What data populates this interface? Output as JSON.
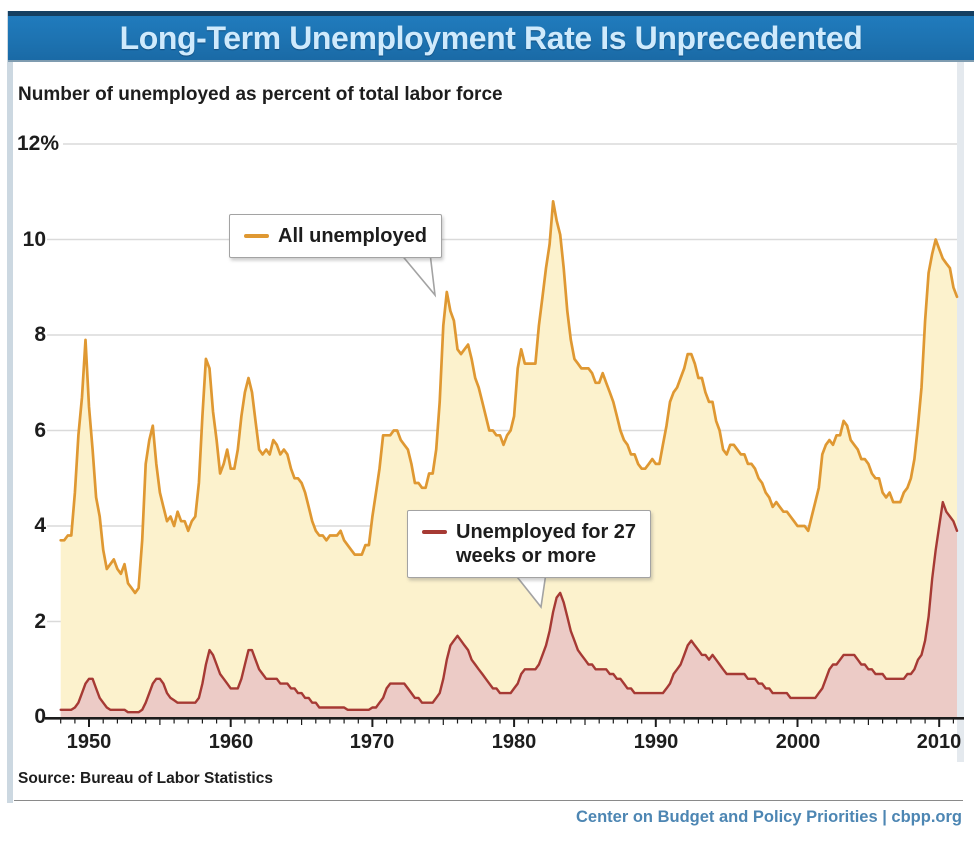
{
  "page": {
    "source": "Source: Bureau of Labor Statistics",
    "footer": "Center on Budget and Policy Priorities | cbpp.org"
  },
  "colors": {
    "banner_bg": "#1d72b0",
    "banner_border_top": "#153f61",
    "banner_text": "#cfeafc",
    "grid": "#dadada",
    "axis": "#1c1c1c",
    "footer_text": "#4d86b3",
    "callout_border": "#a3a3a3"
  },
  "chart_data": {
    "type": "area",
    "title": "Long-Term Unemployment Rate Is Unprecedented",
    "subtitle": "Number of unemployed as percent of total labor force",
    "xlabel": "",
    "ylabel": "Percent of total labor force",
    "x_start": 1948,
    "x_step": 0.25,
    "x_end": 2011.25,
    "ylim": [
      0,
      12
    ],
    "x_ticks": [
      1950,
      1960,
      1970,
      1980,
      1990,
      2000,
      2010
    ],
    "y_ticks": [
      {
        "label": "12%",
        "value": 12
      },
      {
        "label": "10",
        "value": 10
      },
      {
        "label": "8",
        "value": 8
      },
      {
        "label": "6",
        "value": 6
      },
      {
        "label": "4",
        "value": 4
      },
      {
        "label": "2",
        "value": 2
      },
      {
        "label": "0",
        "value": 0
      }
    ],
    "y_gridlines": [
      2,
      4,
      6,
      8,
      10,
      12
    ],
    "legend_position": "inline-callouts",
    "series": [
      {
        "name": "All unemployed",
        "line_color": "#df9832",
        "fill_color": "#fcf2cd",
        "values": [
          3.7,
          3.7,
          3.8,
          3.8,
          4.7,
          5.9,
          6.7,
          7.9,
          6.5,
          5.6,
          4.6,
          4.2,
          3.5,
          3.1,
          3.2,
          3.3,
          3.1,
          3.0,
          3.2,
          2.8,
          2.7,
          2.6,
          2.7,
          3.7,
          5.3,
          5.8,
          6.1,
          5.3,
          4.7,
          4.4,
          4.1,
          4.2,
          4.0,
          4.3,
          4.1,
          4.1,
          3.9,
          4.1,
          4.2,
          4.9,
          6.3,
          7.5,
          7.3,
          6.4,
          5.8,
          5.1,
          5.3,
          5.6,
          5.2,
          5.2,
          5.6,
          6.3,
          6.8,
          7.1,
          6.8,
          6.2,
          5.6,
          5.5,
          5.6,
          5.5,
          5.8,
          5.7,
          5.5,
          5.6,
          5.5,
          5.2,
          5.0,
          5.0,
          4.9,
          4.7,
          4.4,
          4.1,
          3.9,
          3.8,
          3.8,
          3.7,
          3.8,
          3.8,
          3.8,
          3.9,
          3.7,
          3.6,
          3.5,
          3.4,
          3.4,
          3.4,
          3.6,
          3.6,
          4.2,
          4.7,
          5.2,
          5.9,
          5.9,
          5.9,
          6.0,
          6.0,
          5.8,
          5.7,
          5.6,
          5.3,
          4.9,
          4.9,
          4.8,
          4.8,
          5.1,
          5.1,
          5.6,
          6.6,
          8.2,
          8.9,
          8.5,
          8.3,
          7.7,
          7.6,
          7.7,
          7.8,
          7.5,
          7.1,
          6.9,
          6.6,
          6.3,
          6.0,
          6.0,
          5.9,
          5.9,
          5.7,
          5.9,
          6.0,
          6.3,
          7.3,
          7.7,
          7.4,
          7.4,
          7.4,
          7.4,
          8.2,
          8.8,
          9.4,
          9.9,
          10.8,
          10.4,
          10.1,
          9.4,
          8.5,
          7.9,
          7.5,
          7.4,
          7.3,
          7.3,
          7.3,
          7.2,
          7.0,
          7.0,
          7.2,
          7.0,
          6.8,
          6.6,
          6.3,
          6.0,
          5.8,
          5.7,
          5.5,
          5.5,
          5.3,
          5.2,
          5.2,
          5.3,
          5.4,
          5.3,
          5.3,
          5.7,
          6.1,
          6.6,
          6.8,
          6.9,
          7.1,
          7.3,
          7.6,
          7.6,
          7.4,
          7.1,
          7.1,
          6.8,
          6.6,
          6.6,
          6.2,
          6.0,
          5.6,
          5.5,
          5.7,
          5.7,
          5.6,
          5.5,
          5.5,
          5.3,
          5.3,
          5.2,
          5.0,
          4.9,
          4.7,
          4.6,
          4.4,
          4.5,
          4.4,
          4.3,
          4.3,
          4.2,
          4.1,
          4.0,
          4.0,
          4.0,
          3.9,
          4.2,
          4.5,
          4.8,
          5.5,
          5.7,
          5.8,
          5.7,
          5.9,
          5.9,
          6.2,
          6.1,
          5.8,
          5.7,
          5.6,
          5.4,
          5.4,
          5.3,
          5.1,
          5.0,
          5.0,
          4.7,
          4.6,
          4.7,
          4.5,
          4.5,
          4.5,
          4.7,
          4.8,
          5.0,
          5.4,
          6.1,
          6.9,
          8.3,
          9.3,
          9.7,
          10.0,
          9.8,
          9.6,
          9.5,
          9.4,
          9.0,
          8.8
        ]
      },
      {
        "name": "Unemployed for 27 weeks or more",
        "line_color": "#a63a34",
        "fill_color": "#eccbc6",
        "values": [
          0.15,
          0.15,
          0.15,
          0.15,
          0.2,
          0.3,
          0.5,
          0.7,
          0.8,
          0.8,
          0.6,
          0.4,
          0.3,
          0.2,
          0.15,
          0.15,
          0.15,
          0.15,
          0.15,
          0.1,
          0.1,
          0.1,
          0.1,
          0.15,
          0.3,
          0.5,
          0.7,
          0.8,
          0.8,
          0.7,
          0.5,
          0.4,
          0.35,
          0.3,
          0.3,
          0.3,
          0.3,
          0.3,
          0.3,
          0.4,
          0.7,
          1.1,
          1.4,
          1.3,
          1.1,
          0.9,
          0.8,
          0.7,
          0.6,
          0.6,
          0.6,
          0.8,
          1.1,
          1.4,
          1.4,
          1.2,
          1.0,
          0.9,
          0.8,
          0.8,
          0.8,
          0.8,
          0.7,
          0.7,
          0.7,
          0.6,
          0.6,
          0.5,
          0.5,
          0.4,
          0.4,
          0.3,
          0.3,
          0.2,
          0.2,
          0.2,
          0.2,
          0.2,
          0.2,
          0.2,
          0.2,
          0.15,
          0.15,
          0.15,
          0.15,
          0.15,
          0.15,
          0.15,
          0.2,
          0.2,
          0.3,
          0.4,
          0.6,
          0.7,
          0.7,
          0.7,
          0.7,
          0.7,
          0.6,
          0.5,
          0.4,
          0.4,
          0.3,
          0.3,
          0.3,
          0.3,
          0.4,
          0.5,
          0.8,
          1.2,
          1.5,
          1.6,
          1.7,
          1.6,
          1.5,
          1.4,
          1.2,
          1.1,
          1.0,
          0.9,
          0.8,
          0.7,
          0.6,
          0.6,
          0.5,
          0.5,
          0.5,
          0.5,
          0.6,
          0.7,
          0.9,
          1.0,
          1.0,
          1.0,
          1.0,
          1.1,
          1.3,
          1.5,
          1.8,
          2.2,
          2.5,
          2.6,
          2.4,
          2.1,
          1.8,
          1.6,
          1.4,
          1.3,
          1.2,
          1.1,
          1.1,
          1.0,
          1.0,
          1.0,
          1.0,
          0.9,
          0.9,
          0.8,
          0.8,
          0.7,
          0.6,
          0.6,
          0.5,
          0.5,
          0.5,
          0.5,
          0.5,
          0.5,
          0.5,
          0.5,
          0.5,
          0.6,
          0.7,
          0.9,
          1.0,
          1.1,
          1.3,
          1.5,
          1.6,
          1.5,
          1.4,
          1.3,
          1.3,
          1.2,
          1.3,
          1.2,
          1.1,
          1.0,
          0.9,
          0.9,
          0.9,
          0.9,
          0.9,
          0.9,
          0.8,
          0.8,
          0.8,
          0.7,
          0.7,
          0.6,
          0.6,
          0.5,
          0.5,
          0.5,
          0.5,
          0.5,
          0.4,
          0.4,
          0.4,
          0.4,
          0.4,
          0.4,
          0.4,
          0.4,
          0.5,
          0.6,
          0.8,
          1.0,
          1.1,
          1.1,
          1.2,
          1.3,
          1.3,
          1.3,
          1.3,
          1.2,
          1.1,
          1.1,
          1.0,
          1.0,
          0.9,
          0.9,
          0.9,
          0.8,
          0.8,
          0.8,
          0.8,
          0.8,
          0.8,
          0.9,
          0.9,
          1.0,
          1.2,
          1.3,
          1.6,
          2.1,
          2.9,
          3.5,
          4.0,
          4.5,
          4.3,
          4.2,
          4.1,
          3.9
        ]
      }
    ],
    "callouts": [
      {
        "series": 0,
        "lines": [
          "All unemployed"
        ]
      },
      {
        "series": 1,
        "lines": [
          "Unemployed for 27",
          "weeks or more"
        ]
      }
    ]
  }
}
